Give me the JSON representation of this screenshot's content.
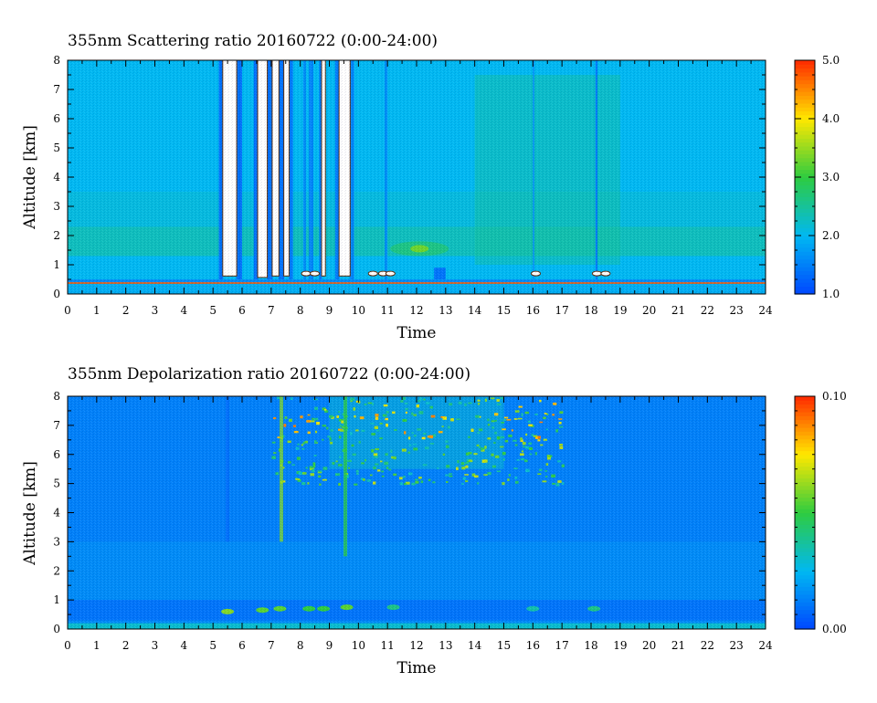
{
  "chart_data": [
    {
      "type": "heatmap",
      "title": "355nm Scattering ratio  20160722 (0:00-24:00)",
      "xlabel": "Time",
      "ylabel": "Altitude [km]",
      "xlim": [
        0,
        24
      ],
      "ylim": [
        0,
        8
      ],
      "x_ticks": [
        "0",
        "1",
        "2",
        "3",
        "4",
        "5",
        "6",
        "7",
        "8",
        "9",
        "10",
        "11",
        "12",
        "13",
        "14",
        "15",
        "16",
        "17",
        "18",
        "19",
        "20",
        "21",
        "22",
        "23",
        "24"
      ],
      "y_ticks": [
        "0",
        "1",
        "2",
        "3",
        "4",
        "5",
        "6",
        "7",
        "8"
      ],
      "colorbar": {
        "min": 1.0,
        "max": 5.0,
        "tick_labels": [
          "1.0",
          "2.0",
          "3.0",
          "4.0",
          "5.0"
        ],
        "tick_values": [
          1.0,
          2.0,
          3.0,
          4.0,
          5.0
        ],
        "colors": [
          "#0047ff",
          "#00b8f2",
          "#2ecc40",
          "#ffe800",
          "#ff2a00"
        ]
      },
      "background_level": 2.0,
      "features": {
        "cloud_columns": [
          {
            "t": [
              5.35,
              5.8
            ],
            "base_km": 0.6,
            "value": "saturated"
          },
          {
            "t": [
              6.55,
              6.85
            ],
            "base_km": 0.55,
            "value": "saturated"
          },
          {
            "t": [
              7.05,
              7.25
            ],
            "base_km": 0.6,
            "value": "saturated"
          },
          {
            "t": [
              7.45,
              7.6
            ],
            "base_km": 0.6,
            "value": "saturated"
          },
          {
            "t": [
              8.75,
              8.85
            ],
            "base_km": 0.6,
            "value": "saturated"
          },
          {
            "t": [
              9.35,
              9.7
            ],
            "base_km": 0.6,
            "value": "saturated"
          }
        ],
        "dark_columns": [
          {
            "t": [
              5.2,
              5.35
            ],
            "value": 1.3
          },
          {
            "t": [
              5.8,
              6.0
            ],
            "value": 1.3
          },
          {
            "t": [
              6.4,
              6.55
            ],
            "value": 1.3
          },
          {
            "t": [
              6.85,
              7.05
            ],
            "value": 1.3
          },
          {
            "t": [
              7.25,
              7.45
            ],
            "value": 1.3
          },
          {
            "t": [
              7.6,
              7.75
            ],
            "value": 1.4
          },
          {
            "t": [
              8.1,
              8.2
            ],
            "value": 1.6
          },
          {
            "t": [
              8.3,
              8.45
            ],
            "value": 1.5
          },
          {
            "t": [
              8.65,
              8.75
            ],
            "value": 1.4
          },
          {
            "t": [
              9.2,
              9.35
            ],
            "value": 1.4
          },
          {
            "t": [
              9.7,
              9.85
            ],
            "value": 1.5
          },
          {
            "t": [
              10.9,
              11.0
            ],
            "value": 1.6
          },
          {
            "t": [
              16.0,
              16.05
            ],
            "value": 1.6
          },
          {
            "t": [
              18.15,
              18.22
            ],
            "value": 1.4
          }
        ],
        "aerosol_layer_km": [
          1.3,
          2.3
        ],
        "hotspot": {
          "t": 12.1,
          "alt_km": 1.55,
          "value": 3.3
        }
      }
    },
    {
      "type": "heatmap",
      "title": "355nm Depolarization ratio  20160722 (0:00-24:00)",
      "xlabel": "Time",
      "ylabel": "Altitude [km]",
      "xlim": [
        0,
        24
      ],
      "ylim": [
        0,
        8
      ],
      "x_ticks": [
        "0",
        "1",
        "2",
        "3",
        "4",
        "5",
        "6",
        "7",
        "8",
        "9",
        "10",
        "11",
        "12",
        "13",
        "14",
        "15",
        "16",
        "17",
        "18",
        "19",
        "20",
        "21",
        "22",
        "23",
        "24"
      ],
      "y_ticks": [
        "0",
        "1",
        "2",
        "3",
        "4",
        "5",
        "6",
        "7",
        "8"
      ],
      "colorbar": {
        "min": 0.0,
        "max": 0.1,
        "tick_labels": [
          "0.00",
          "0.10"
        ],
        "tick_values": [
          0.0,
          0.1
        ],
        "colors": [
          "#0047ff",
          "#00b8f2",
          "#2ecc40",
          "#ffe800",
          "#ff2a00"
        ]
      },
      "background_level": 0.015,
      "features": {
        "noisy_region": {
          "t": [
            9,
            15
          ],
          "alt_km": [
            5.5,
            8
          ],
          "value_max": 0.09
        },
        "cloud_base_spots": [
          {
            "t": 5.5,
            "alt_km": 0.6,
            "value": 0.06
          },
          {
            "t": 6.7,
            "alt_km": 0.65,
            "value": 0.055
          },
          {
            "t": 7.3,
            "alt_km": 0.7,
            "value": 0.055
          },
          {
            "t": 8.3,
            "alt_km": 0.7,
            "value": 0.05
          },
          {
            "t": 8.8,
            "alt_km": 0.7,
            "value": 0.05
          },
          {
            "t": 9.6,
            "alt_km": 0.75,
            "value": 0.055
          },
          {
            "t": 11.2,
            "alt_km": 0.75,
            "value": 0.04
          },
          {
            "t": 16.0,
            "alt_km": 0.7,
            "value": 0.035
          },
          {
            "t": 18.1,
            "alt_km": 0.7,
            "value": 0.04
          }
        ],
        "streaks": [
          {
            "t": 5.5,
            "alt_km": [
              3,
              8
            ],
            "value": 0.008
          },
          {
            "t": 7.35,
            "alt_km": [
              3,
              8
            ],
            "value": 0.06
          },
          {
            "t": 9.55,
            "alt_km": [
              2.5,
              8
            ],
            "value": 0.05
          }
        ]
      }
    }
  ]
}
